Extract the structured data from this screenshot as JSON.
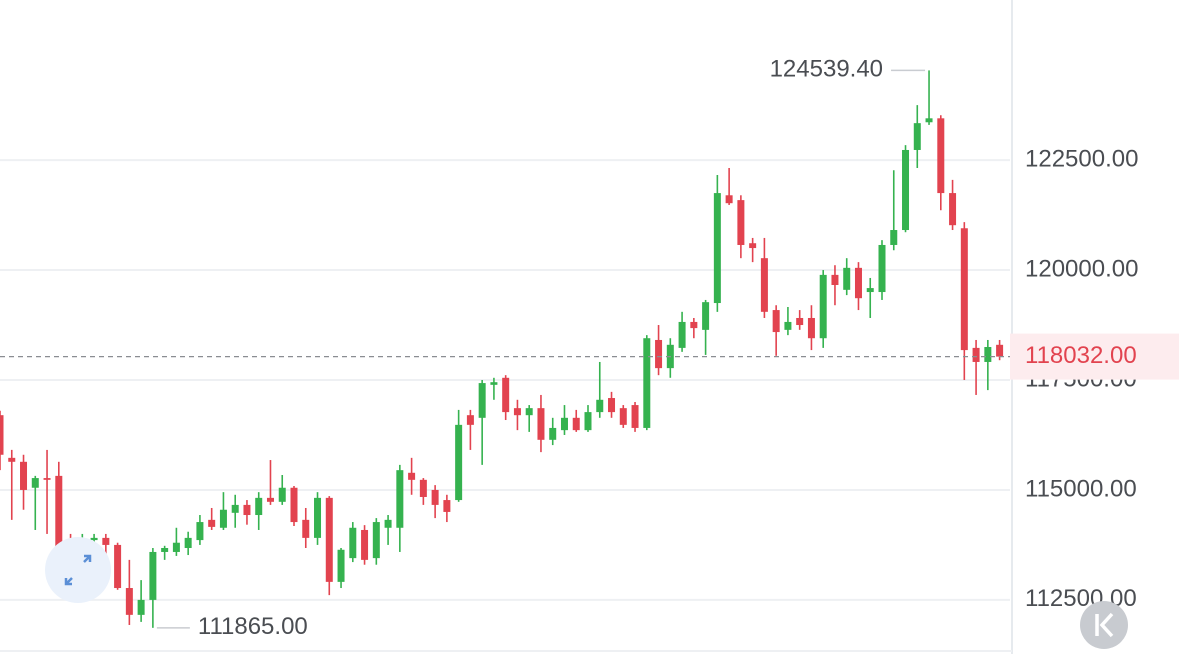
{
  "chart_data": {
    "type": "candlestick",
    "up_color": "#35b24f",
    "down_color": "#e2434f",
    "open": [
      116700,
      115730,
      115640,
      115050,
      115270,
      115320,
      113300,
      113180,
      113860,
      113910,
      113750,
      112770,
      112160,
      112500,
      113590,
      113590,
      113680,
      113860,
      114320,
      114140,
      114480,
      114660,
      114430,
      114820,
      114730,
      115050,
      114320,
      113910,
      114820,
      112910,
      113450,
      114090,
      113450,
      114140,
      114140,
      115390,
      115230,
      115000,
      114770,
      114770,
      116700,
      116640,
      117390,
      117550,
      116860,
      116700,
      116860,
      116140,
      116360,
      116640,
      116360,
      116770,
      117090,
      116860,
      116930,
      116410,
      118410,
      117770,
      118230,
      118820,
      118640,
      119250,
      121700,
      121590,
      120610,
      120270,
      119090,
      118640,
      118910,
      118910,
      118450,
      119890,
      119550,
      120050,
      119500,
      119500,
      120570,
      120910,
      122730,
      123360,
      123450,
      121750,
      120950,
      118230,
      117910,
      118300
    ],
    "high": [
      116800,
      115910,
      115800,
      115320,
      115910,
      115640,
      114000,
      114000,
      114000,
      114000,
      113800,
      113410,
      112950,
      113680,
      113730,
      114140,
      114050,
      114430,
      114590,
      114950,
      114890,
      114770,
      114950,
      115680,
      115340,
      115090,
      114590,
      114950,
      114860,
      113680,
      114270,
      114200,
      114360,
      114430,
      115570,
      115730,
      115270,
      115110,
      114890,
      116820,
      116820,
      117500,
      117550,
      117610,
      117050,
      116930,
      117160,
      116640,
      116930,
      116820,
      116930,
      117910,
      117230,
      116930,
      117000,
      118520,
      118750,
      118450,
      119050,
      118910,
      119320,
      122160,
      122320,
      121700,
      120730,
      120730,
      119200,
      119160,
      119090,
      119200,
      120000,
      120110,
      120270,
      120180,
      119820,
      120680,
      122270,
      122840,
      123750,
      124539.4,
      123520,
      122050,
      121090,
      118410,
      118410,
      118410
    ],
    "low": [
      115450,
      114320,
      114550,
      114090,
      114000,
      113180,
      112680,
      113090,
      113750,
      113410,
      112730,
      111930,
      112000,
      111865,
      113410,
      113500,
      113520,
      113750,
      114090,
      114090,
      114140,
      114210,
      114090,
      114660,
      114660,
      114180,
      113680,
      113750,
      112610,
      112770,
      113360,
      113300,
      113300,
      113750,
      113590,
      114890,
      114660,
      114360,
      114270,
      114730,
      115910,
      115570,
      117050,
      116590,
      116360,
      116320,
      115860,
      116020,
      116250,
      116320,
      116320,
      116640,
      116640,
      116410,
      116320,
      116360,
      117610,
      117550,
      118140,
      118450,
      118070,
      119050,
      121480,
      120270,
      120180,
      118910,
      118050,
      118520,
      118640,
      118180,
      118230,
      119200,
      119430,
      119090,
      118910,
      119320,
      120450,
      120860,
      122320,
      123300,
      121360,
      120910,
      117500,
      117160,
      117270,
      117950
    ],
    "close": [
      115800,
      115640,
      115000,
      115270,
      115230,
      113300,
      112730,
      113860,
      113910,
      113750,
      112770,
      112160,
      112500,
      113590,
      113680,
      113800,
      113910,
      114270,
      114160,
      114550,
      114660,
      114430,
      114820,
      114730,
      115050,
      114270,
      113910,
      114820,
      112910,
      113640,
      114140,
      113410,
      114270,
      114320,
      115450,
      115230,
      114840,
      114660,
      114500,
      116480,
      116480,
      117430,
      117450,
      116770,
      116700,
      116860,
      116140,
      116410,
      116640,
      116360,
      116770,
      117050,
      116770,
      116480,
      116410,
      118450,
      117770,
      118300,
      118820,
      118680,
      119270,
      121750,
      121520,
      120570,
      120500,
      119050,
      118590,
      118820,
      118750,
      118450,
      119890,
      119660,
      120050,
      119360,
      119590,
      120570,
      120910,
      122730,
      123340,
      123450,
      121750,
      121020,
      118180,
      117910,
      118250,
      118032
    ],
    "ylim": [
      111270,
      126140
    ],
    "yticks": [
      {
        "value": 112500,
        "label": "112500.00"
      },
      {
        "value": 115000,
        "label": "115000.00"
      },
      {
        "value": 117500,
        "label": "117500.00"
      },
      {
        "value": 120000,
        "label": "120000.00"
      },
      {
        "value": 122500,
        "label": "122500.00"
      }
    ],
    "grid": true,
    "max_label": {
      "value": 124539.4,
      "label": "124539.40"
    },
    "min_label": {
      "value": 111865,
      "label": "111865.00"
    },
    "last_price": {
      "value": 118032,
      "label": "118032.00"
    }
  }
}
